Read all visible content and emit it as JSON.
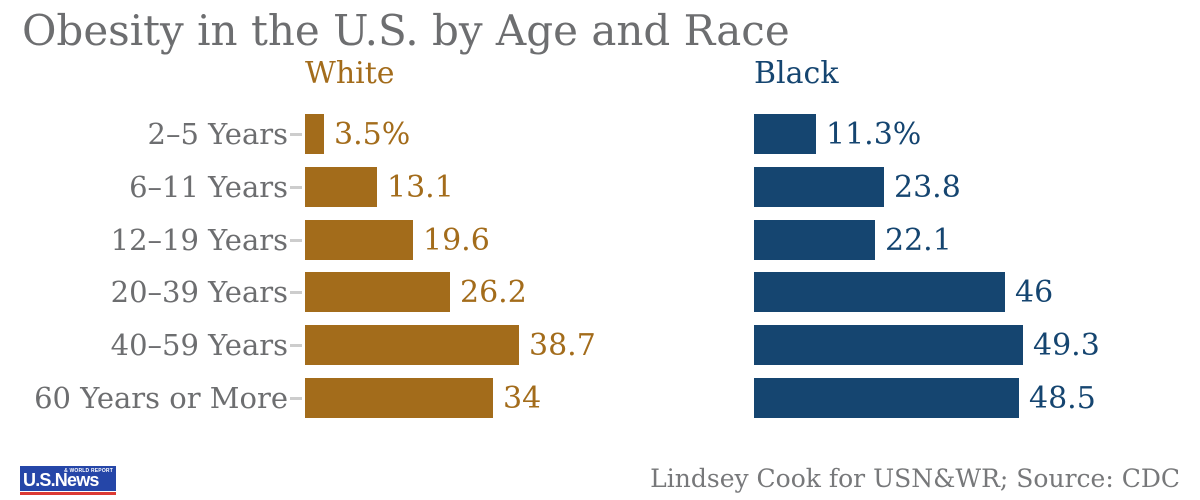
{
  "title": "Obesity in the U.S. by Age and Race",
  "chart_data": {
    "type": "bar",
    "orientation": "horizontal",
    "title": "Obesity in the U.S. by Age and Race",
    "categories": [
      "2–5 Years",
      "6–11 Years",
      "12–19 Years",
      "20–39 Years",
      "40–59 Years",
      "60 Years or More"
    ],
    "series": [
      {
        "name": "White",
        "color": "#A36C1B",
        "values": [
          3.5,
          13.1,
          19.6,
          26.2,
          38.7,
          34
        ],
        "value_labels": [
          "3.5%",
          "13.1",
          "19.6",
          "26.2",
          "38.7",
          "34"
        ]
      },
      {
        "name": "Black",
        "color": "#154570",
        "values": [
          11.3,
          23.8,
          22.1,
          46,
          49.3,
          48.5
        ],
        "value_labels": [
          "11.3%",
          "23.8",
          "22.1",
          "46",
          "49.3",
          "48.5"
        ]
      }
    ],
    "xlim": [
      0,
      50
    ],
    "grid": false,
    "legend_position": "top",
    "value_labels_shown": true
  },
  "colors": {
    "title_text": "#6D6E70",
    "category_text": "#6D6E70",
    "tick": "#CDCDCD",
    "attribution_text": "#77787A",
    "logo_background": "#2546A8",
    "logo_underline": "#DC3A33"
  },
  "footer": {
    "attribution": "Lindsey Cook for USN&WR; Source: CDC",
    "logo_main": "U.S.News",
    "logo_sub": "& WORLD REPORT"
  }
}
